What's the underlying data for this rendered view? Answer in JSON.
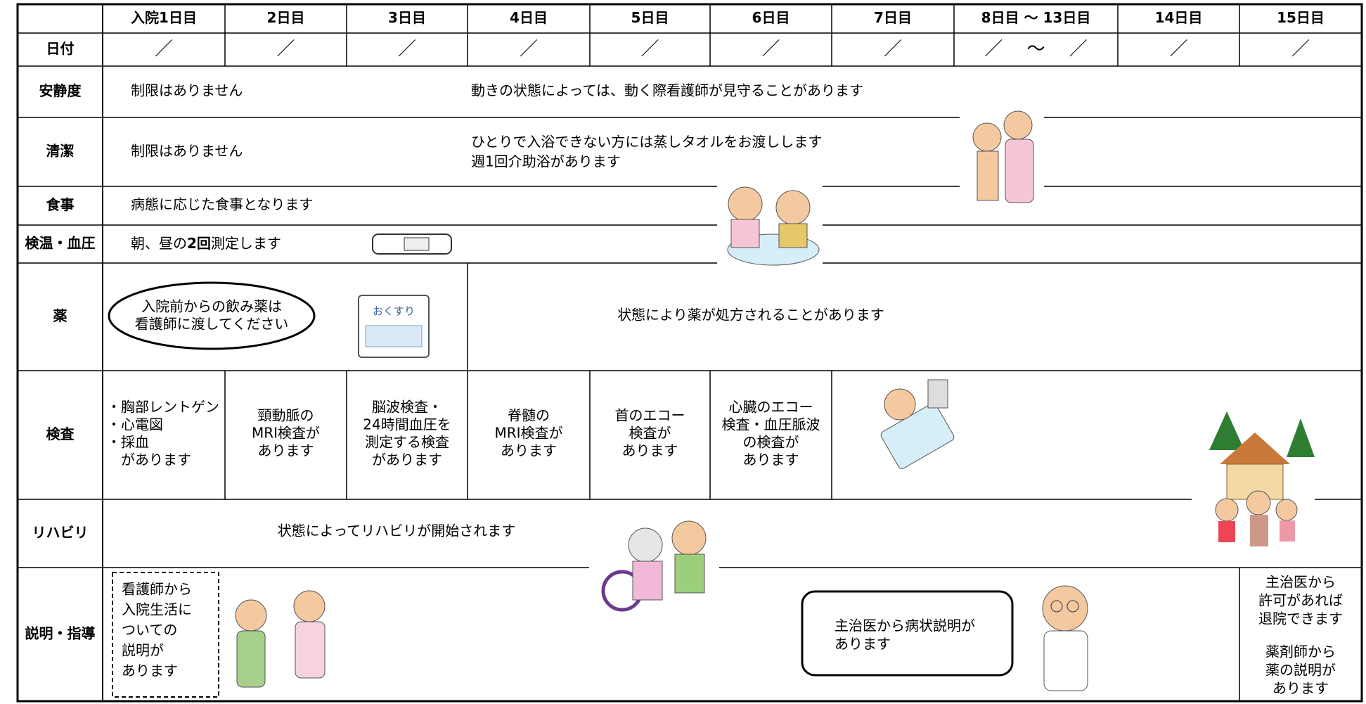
{
  "table": {
    "columns": [
      "入院1日目",
      "2日目",
      "3日目",
      "4日目",
      "5日目",
      "6日目",
      "7日目",
      "8日目 ～ 13日目",
      "14日目",
      "15日目"
    ],
    "date": {
      "label": "日付",
      "cells": [
        "／",
        "／",
        "／",
        "／",
        "／",
        "／",
        "／",
        "／　 ～　 ／",
        "／",
        "／"
      ]
    },
    "rest": {
      "label": "安静度",
      "texts": [
        "制限はありません",
        "動きの状態によっては、動く際看護師が見守ることがあります"
      ]
    },
    "hygiene": {
      "label": "清潔",
      "texts": [
        "制限はありません",
        "ひとりで入浴できない方には蒸しタオルをお渡しします",
        "週1回介助浴があります"
      ]
    },
    "meal": {
      "label": "食事",
      "text": "病態に応じた食事となります"
    },
    "vitals": {
      "label": "検温・血圧",
      "parts": [
        "朝、昼の",
        "2回",
        "測定します"
      ]
    },
    "medicine": {
      "label": "薬",
      "bubble": [
        "入院前からの飲み薬は",
        "看護師に渡してください"
      ],
      "icon": "おくすり",
      "text": "状態により薬が処方されることがあります"
    },
    "tests": {
      "label": "検査",
      "cells": [
        [
          "・胸部レントゲン",
          "・心電図",
          "・採血",
          "　があります"
        ],
        [
          "頸動脈の",
          "MRI検査が",
          "あります"
        ],
        [
          "脳波検査・",
          "24時間血圧を",
          "測定する検査",
          "があります"
        ],
        [
          "脊髄の",
          "MRI検査が",
          "あります"
        ],
        [
          "首のエコー",
          "検査が",
          "あります"
        ],
        [
          "心臓のエコー",
          "検査・血圧脈波",
          "の検査が",
          "あります"
        ]
      ]
    },
    "rehab": {
      "label": "リハビリ",
      "text": "状態によってリハビリが開始されます"
    },
    "guidance": {
      "label": "説明・指導",
      "nurse": [
        "看護師から",
        "入院生活に",
        "ついての",
        "説明が",
        "あります"
      ],
      "doctor": [
        "主治医から病状説明が",
        "あります"
      ],
      "discharge": [
        "主治医から",
        "許可があれば",
        "退院できます"
      ],
      "pharmacist": [
        "薬剤師から",
        "薬の説明が",
        "あります"
      ]
    }
  }
}
